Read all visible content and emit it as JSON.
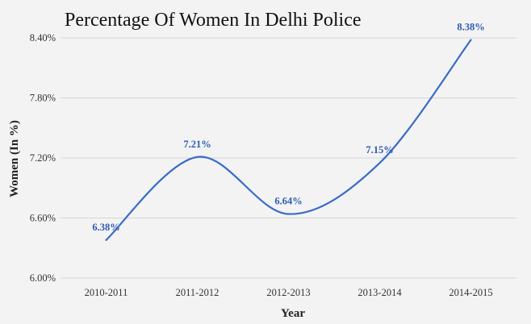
{
  "chart_data": {
    "type": "line",
    "title": "Percentage Of Women In Delhi Police",
    "xlabel": "Year",
    "ylabel": "Women (In %)",
    "categories": [
      "2010-2011",
      "2011-2012",
      "2012-2013",
      "2013-2014",
      "2014-2015"
    ],
    "series": [
      {
        "values": [
          6.38,
          7.21,
          6.64,
          7.15,
          8.38
        ],
        "data_labels": [
          "6.38%",
          "7.21%",
          "6.64%",
          "7.15%",
          "8.38%"
        ]
      }
    ],
    "ylim": [
      6.0,
      8.4
    ],
    "yticks": [
      6.0,
      6.6,
      7.2,
      7.8,
      8.4
    ],
    "ytick_labels": [
      "6.00%",
      "6.60%",
      "7.20%",
      "7.80%",
      "8.40%"
    ],
    "grid": true,
    "smooth": true,
    "line_color": "#3a6bc9",
    "label_color": "#2d5bb5"
  }
}
